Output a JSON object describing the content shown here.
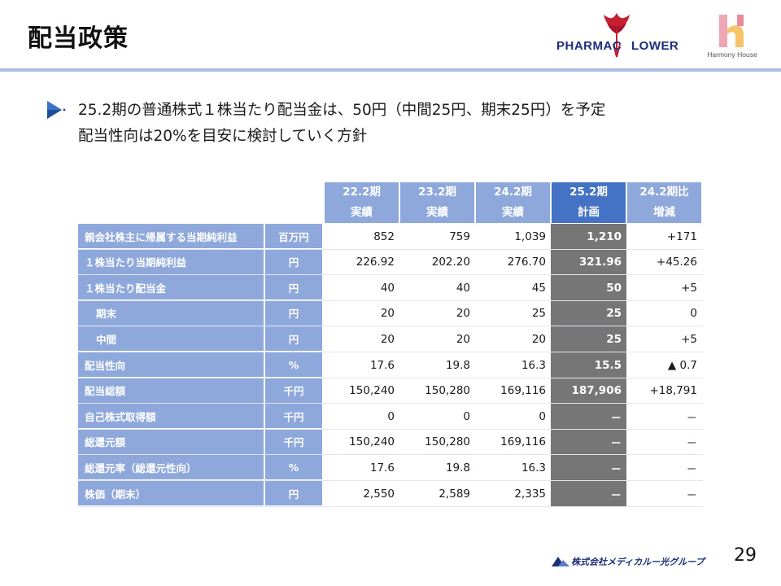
{
  "slide": {
    "title": "配当政策",
    "page_number": "29"
  },
  "logos": {
    "pharmac_left": "PHARMAC",
    "pharmac_right": "LOWER",
    "harmony_caption": "Harmony House",
    "footer_company": "株式会社メディカルー光グループ"
  },
  "bullets": [
    "25.2期の普通株式１株当たり配当金は、50円（中間25円、期末25円）を予定",
    "配当性向は20%を目安に検討していく方針"
  ],
  "table": {
    "headers": [
      {
        "line1": "22.2期",
        "line2": "実績"
      },
      {
        "line1": "23.2期",
        "line2": "実績"
      },
      {
        "line1": "24.2期",
        "line2": "実績"
      },
      {
        "line1": "25.2期",
        "line2": "計画"
      },
      {
        "line1": "24.2期比",
        "line2": "増減"
      }
    ],
    "rows": [
      {
        "label": "親会社株主に帰属する当期純利益",
        "unit": "百万円",
        "v": [
          "852",
          "759",
          "1,039",
          "1,210",
          "+171"
        ]
      },
      {
        "label": "１株当たり当期純利益",
        "unit": "円",
        "v": [
          "226.92",
          "202.20",
          "276.70",
          "321.96",
          "+45.26"
        ]
      },
      {
        "label": "１株当たり配当金",
        "unit": "円",
        "v": [
          "40",
          "40",
          "45",
          "50",
          "+5"
        ]
      },
      {
        "label": "期末",
        "unit": "円",
        "v": [
          "20",
          "20",
          "25",
          "25",
          "0"
        ]
      },
      {
        "label": "中間",
        "unit": "円",
        "v": [
          "20",
          "20",
          "20",
          "25",
          "+5"
        ]
      },
      {
        "label": "配当性向",
        "unit": "%",
        "v": [
          "17.6",
          "19.8",
          "16.3",
          "15.5",
          "▲ 0.7"
        ]
      },
      {
        "label": "配当総額",
        "unit": "千円",
        "v": [
          "150,240",
          "150,280",
          "169,116",
          "187,906",
          "+18,791"
        ]
      },
      {
        "label": "自己株式取得額",
        "unit": "千円",
        "v": [
          "0",
          "0",
          "0",
          "－",
          "－"
        ]
      },
      {
        "label": "総還元額",
        "unit": "千円",
        "v": [
          "150,240",
          "150,280",
          "169,116",
          "－",
          "－"
        ]
      },
      {
        "label": "総還元率（総還元性向）",
        "unit": "%",
        "v": [
          "17.6",
          "19.8",
          "16.3",
          "－",
          "－"
        ]
      },
      {
        "label": "株価（期末）",
        "unit": "円",
        "v": [
          "2,550",
          "2,589",
          "2,335",
          "－",
          "－"
        ]
      }
    ]
  },
  "colors": {
    "header_blue": "#8ea8dc",
    "plan_header_blue": "#4472c4",
    "plan_column_gray": "#767676",
    "title_rule": "#a9bedb"
  }
}
